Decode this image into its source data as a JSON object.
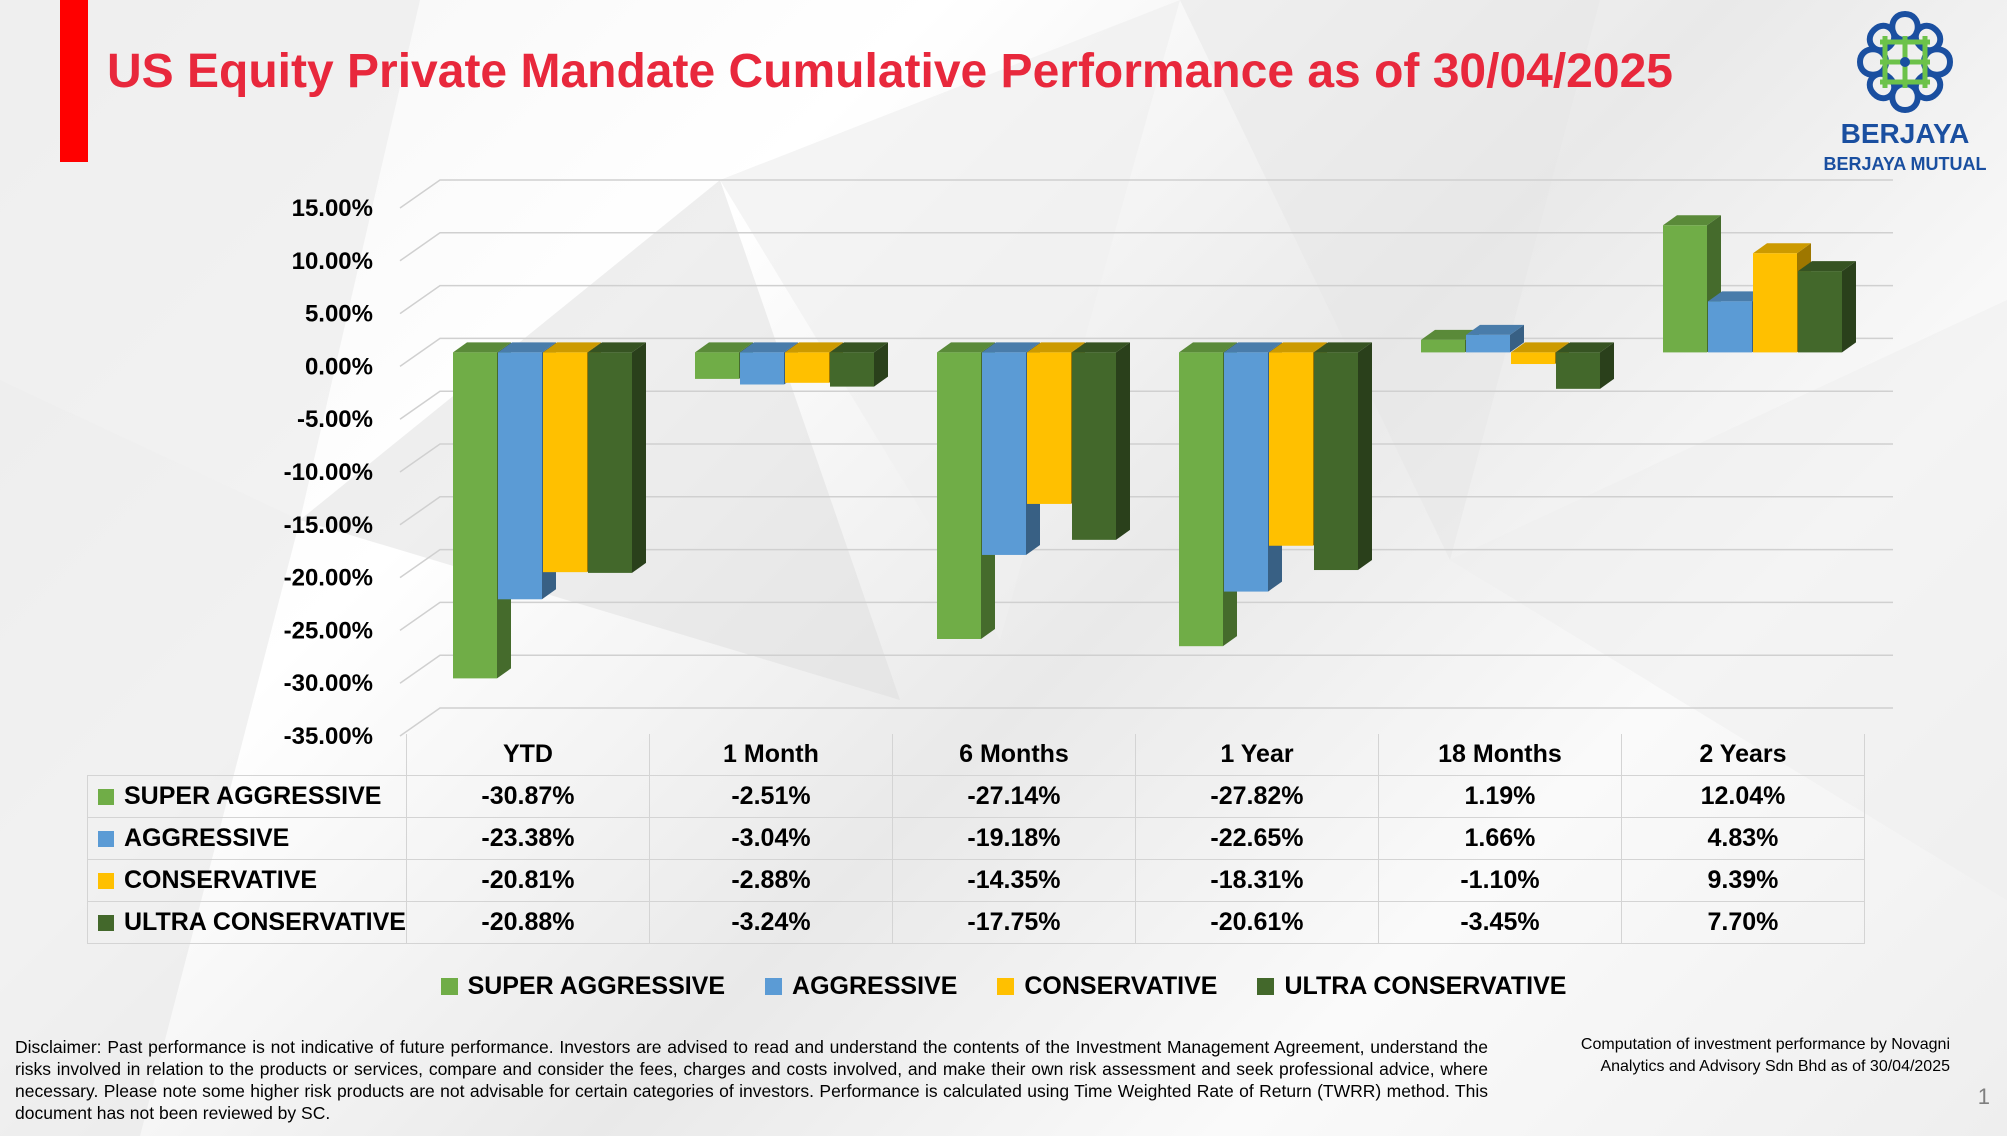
{
  "title": "US Equity Private Mandate Cumulative Performance as of 30/04/2025",
  "logo": {
    "brand": "BERJAYA",
    "sub": "BERJAYA MUTUAL"
  },
  "colors": {
    "title": "#e8283c",
    "accent_bar": "#ff0000",
    "logo": "#1a4fa0",
    "logo_green": "#6cc24a",
    "series": [
      "#70ad47",
      "#5b9bd5",
      "#ffc000",
      "#43682b"
    ]
  },
  "chart_data": {
    "type": "bar",
    "style": "3d-clustered-column",
    "categories": [
      "YTD",
      "1 Month",
      "6 Months",
      "1 Year",
      "18 Months",
      "2 Years"
    ],
    "series": [
      {
        "name": "SUPER AGGRESSIVE",
        "values": [
          -30.87,
          -2.51,
          -27.14,
          -27.82,
          1.19,
          12.04
        ],
        "labels": [
          "-30.87%",
          "-2.51%",
          "-27.14%",
          "-27.82%",
          "1.19%",
          "12.04%"
        ]
      },
      {
        "name": "AGGRESSIVE",
        "values": [
          -23.38,
          -3.04,
          -19.18,
          -22.65,
          1.66,
          4.83
        ],
        "labels": [
          "-23.38%",
          "-3.04%",
          "-19.18%",
          "-22.65%",
          "1.66%",
          "4.83%"
        ]
      },
      {
        "name": "CONSERVATIVE",
        "values": [
          -20.81,
          -2.88,
          -14.35,
          -18.31,
          -1.1,
          9.39
        ],
        "labels": [
          "-20.81%",
          "-2.88%",
          "-14.35%",
          "-18.31%",
          "-1.10%",
          "9.39%"
        ]
      },
      {
        "name": "ULTRA CONSERVATIVE",
        "values": [
          -20.88,
          -3.24,
          -17.75,
          -20.61,
          -3.45,
          7.7
        ],
        "labels": [
          "-20.88%",
          "-3.24%",
          "-17.75%",
          "-20.61%",
          "-3.45%",
          "7.70%"
        ]
      }
    ],
    "ylim": [
      -35,
      15
    ],
    "yticks": [
      15,
      10,
      5,
      0,
      -5,
      -10,
      -15,
      -20,
      -25,
      -30,
      -35
    ],
    "ytick_labels": [
      "15.00%",
      "10.00%",
      "5.00%",
      "0.00%",
      "-5.00%",
      "-10.00%",
      "-15.00%",
      "-20.00%",
      "-25.00%",
      "-30.00%",
      "-35.00%"
    ],
    "grid": true,
    "legend": "bottom",
    "data_table": true
  },
  "disclaimer": "Disclaimer: Past performance is not indicative of future performance. Investors are advised to read and understand the contents of the Investment Management Agreement, understand the risks involved in relation to the products or services, compare and consider the fees, charges and costs involved, and make their own risk assessment and seek professional advice, where necessary. Please note some higher risk products are not advisable for certain categories of investors. Performance is calculated using Time Weighted Rate of Return (TWRR) method. This document has not been reviewed by SC.",
  "computation": "Computation of investment performance by Novagni Analytics and Advisory Sdn Bhd as of 30/04/2025",
  "page_number": "1"
}
